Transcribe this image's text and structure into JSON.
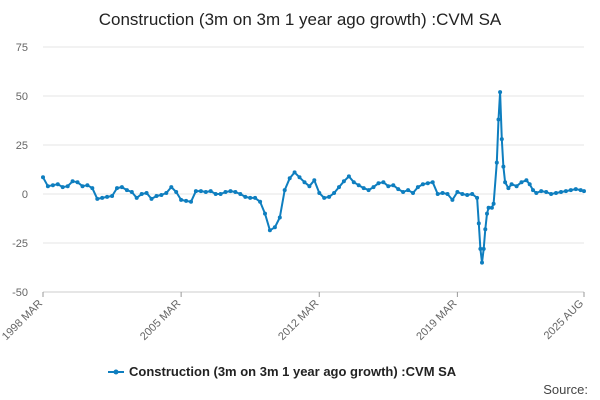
{
  "chart_data": {
    "type": "line",
    "title": "Construction (3m on 3m 1 year ago growth) :CVM SA",
    "xlabel": "",
    "ylabel": "",
    "ylim": [
      -50,
      75
    ],
    "yticks": [
      75,
      50,
      25,
      0,
      -25,
      -50
    ],
    "xlim": [
      "1998-03",
      "2025-08"
    ],
    "xticks": [
      {
        "label": "1998 MAR",
        "date": "1998-03"
      },
      {
        "label": "2005 MAR",
        "date": "2005-03"
      },
      {
        "label": "2012 MAR",
        "date": "2012-03"
      },
      {
        "label": "2019 MAR",
        "date": "2019-03"
      },
      {
        "label": "2025 AUG",
        "date": "2025-08"
      }
    ],
    "grid": true,
    "legend_position": "bottom",
    "source_label": "Source:",
    "colors": {
      "series": "#0e7ebf",
      "grid": "#e6e6e6"
    },
    "series": [
      {
        "name": "Construction (3m on 3m 1 year ago growth) :CVM SA",
        "points": [
          [
            "1998-03",
            8.5
          ],
          [
            "1998-06",
            4.0
          ],
          [
            "1998-09",
            4.5
          ],
          [
            "1998-12",
            5.0
          ],
          [
            "1999-03",
            3.5
          ],
          [
            "1999-06",
            4.0
          ],
          [
            "1999-09",
            6.5
          ],
          [
            "1999-12",
            6.0
          ],
          [
            "2000-03",
            4.0
          ],
          [
            "2000-06",
            4.5
          ],
          [
            "2000-09",
            3.0
          ],
          [
            "2000-12",
            -2.5
          ],
          [
            "2001-03",
            -2.0
          ],
          [
            "2001-06",
            -1.5
          ],
          [
            "2001-09",
            -1.0
          ],
          [
            "2001-12",
            3.0
          ],
          [
            "2002-03",
            3.5
          ],
          [
            "2002-06",
            2.0
          ],
          [
            "2002-09",
            1.0
          ],
          [
            "2002-12",
            -2.0
          ],
          [
            "2003-03",
            0.0
          ],
          [
            "2003-06",
            0.5
          ],
          [
            "2003-09",
            -2.5
          ],
          [
            "2003-12",
            -1.0
          ],
          [
            "2004-03",
            -0.5
          ],
          [
            "2004-06",
            0.5
          ],
          [
            "2004-09",
            3.5
          ],
          [
            "2004-12",
            1.0
          ],
          [
            "2005-03",
            -3.0
          ],
          [
            "2005-06",
            -3.5
          ],
          [
            "2005-09",
            -4.0
          ],
          [
            "2005-12",
            1.5
          ],
          [
            "2006-03",
            1.5
          ],
          [
            "2006-06",
            1.0
          ],
          [
            "2006-09",
            1.5
          ],
          [
            "2006-12",
            0.0
          ],
          [
            "2007-03",
            0.0
          ],
          [
            "2007-06",
            1.0
          ],
          [
            "2007-09",
            1.5
          ],
          [
            "2007-12",
            1.0
          ],
          [
            "2008-03",
            0.0
          ],
          [
            "2008-06",
            -1.5
          ],
          [
            "2008-09",
            -2.0
          ],
          [
            "2008-12",
            -2.0
          ],
          [
            "2009-03",
            -4.0
          ],
          [
            "2009-06",
            -10.0
          ],
          [
            "2009-09",
            -18.5
          ],
          [
            "2009-12",
            -17.0
          ],
          [
            "2010-03",
            -12.0
          ],
          [
            "2010-06",
            2.0
          ],
          [
            "2010-09",
            8.0
          ],
          [
            "2010-12",
            11.0
          ],
          [
            "2011-03",
            8.5
          ],
          [
            "2011-06",
            6.0
          ],
          [
            "2011-09",
            4.0
          ],
          [
            "2011-12",
            7.0
          ],
          [
            "2012-03",
            0.5
          ],
          [
            "2012-06",
            -2.0
          ],
          [
            "2012-09",
            -1.5
          ],
          [
            "2012-12",
            0.5
          ],
          [
            "2013-03",
            3.5
          ],
          [
            "2013-06",
            6.5
          ],
          [
            "2013-09",
            9.0
          ],
          [
            "2013-12",
            6.0
          ],
          [
            "2014-03",
            4.5
          ],
          [
            "2014-06",
            3.0
          ],
          [
            "2014-09",
            2.0
          ],
          [
            "2014-12",
            3.5
          ],
          [
            "2015-03",
            5.5
          ],
          [
            "2015-06",
            6.0
          ],
          [
            "2015-09",
            4.0
          ],
          [
            "2015-12",
            4.5
          ],
          [
            "2016-03",
            2.5
          ],
          [
            "2016-06",
            1.0
          ],
          [
            "2016-09",
            2.0
          ],
          [
            "2016-12",
            0.5
          ],
          [
            "2017-03",
            3.5
          ],
          [
            "2017-06",
            5.0
          ],
          [
            "2017-09",
            5.5
          ],
          [
            "2017-12",
            6.0
          ],
          [
            "2018-03",
            0.0
          ],
          [
            "2018-06",
            0.5
          ],
          [
            "2018-09",
            0.0
          ],
          [
            "2018-12",
            -3.0
          ],
          [
            "2019-03",
            1.0
          ],
          [
            "2019-06",
            0.0
          ],
          [
            "2019-09",
            -0.5
          ],
          [
            "2019-12",
            0.0
          ],
          [
            "2020-03",
            -2.0
          ],
          [
            "2020-04",
            -15.0
          ],
          [
            "2020-05",
            -28.0
          ],
          [
            "2020-06",
            -35.0
          ],
          [
            "2020-07",
            -28.0
          ],
          [
            "2020-08",
            -18.0
          ],
          [
            "2020-09",
            -10.0
          ],
          [
            "2020-10",
            -7.0
          ],
          [
            "2020-12",
            -7.0
          ],
          [
            "2021-01",
            -5.0
          ],
          [
            "2021-03",
            16.0
          ],
          [
            "2021-04",
            38.0
          ],
          [
            "2021-05",
            52.0
          ],
          [
            "2021-06",
            28.0
          ],
          [
            "2021-07",
            14.0
          ],
          [
            "2021-08",
            6.0
          ],
          [
            "2021-10",
            3.0
          ],
          [
            "2021-12",
            5.0
          ],
          [
            "2022-03",
            4.0
          ],
          [
            "2022-06",
            6.0
          ],
          [
            "2022-09",
            7.0
          ],
          [
            "2022-11",
            5.0
          ],
          [
            "2023-01",
            2.0
          ],
          [
            "2023-03",
            0.5
          ],
          [
            "2023-06",
            1.5
          ],
          [
            "2023-09",
            1.0
          ],
          [
            "2023-12",
            0.0
          ],
          [
            "2024-03",
            0.5
          ],
          [
            "2024-06",
            1.0
          ],
          [
            "2024-09",
            1.5
          ],
          [
            "2024-12",
            2.0
          ],
          [
            "2025-03",
            2.5
          ],
          [
            "2025-06",
            2.0
          ],
          [
            "2025-08",
            1.5
          ]
        ]
      }
    ]
  }
}
